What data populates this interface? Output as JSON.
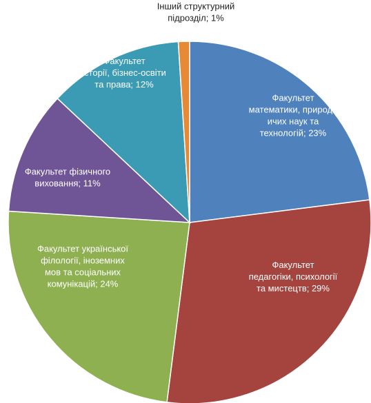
{
  "chart_data": {
    "type": "pie",
    "slices": [
      {
        "label": "Факультет математики, природничих наук та технологій",
        "value": 23,
        "label_lines": [
          "Факультет",
          "математики, природн",
          "ичих наук та",
          "технологій; 23%"
        ],
        "color": "#4F81BD"
      },
      {
        "label": "Факультет педагогіки, психології та мистецтв",
        "value": 29,
        "label_lines": [
          "Факультет",
          "педагогіки, психології",
          "та мистецтв; 29%"
        ],
        "color": "#A5443F"
      },
      {
        "label": "Факультет української філології, іноземних мов та соціальних комунікацій",
        "value": 24,
        "label_lines": [
          "Факультет української",
          "філології, іноземних",
          "мов та соціальних",
          "комунікацій; 24%"
        ],
        "color": "#8FB051"
      },
      {
        "label": "Факультет фізичного виховання",
        "value": 11,
        "label_lines": [
          "Факультет фізичного",
          "виховання; 11%"
        ],
        "color": "#6F5496"
      },
      {
        "label": "Факультет історії, бізнес-освіти та права",
        "value": 12,
        "label_lines": [
          "Факультет",
          "історії, бізнес-освіти",
          "та права; 12%"
        ],
        "color": "#3B9BB4"
      },
      {
        "label": "Інший структурний підрозділ",
        "value": 1,
        "label_lines": [
          "Інший структурний",
          "підрозділ; 1%"
        ],
        "color": "#E68A35"
      }
    ],
    "label_style": "inside"
  }
}
